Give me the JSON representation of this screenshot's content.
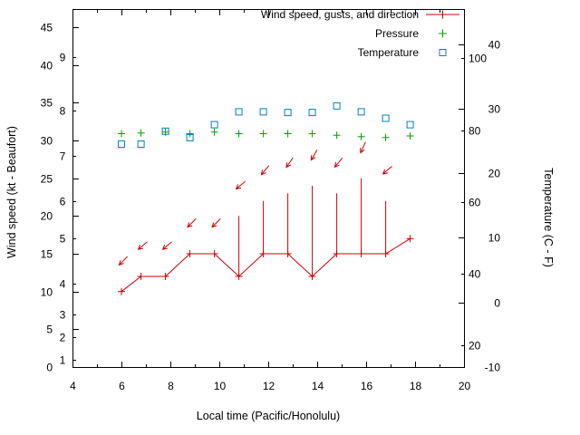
{
  "chart_data": {
    "type": "line",
    "title": "",
    "xlabel": "Local time (Pacific/Honolulu)",
    "ylabel_left": "Wind speed (kt - Beaufort)",
    "ylabel_right": "Temperature (C - F)",
    "grid": false,
    "legend_position": "top-right-inside",
    "xlim": [
      4,
      20
    ],
    "kt_lim": [
      0,
      47.4
    ],
    "c_lim": [
      -10,
      45.4
    ],
    "x_ticks": [
      4,
      6,
      8,
      10,
      12,
      14,
      16,
      18,
      20
    ],
    "x_minor_step": 1,
    "kt_ticks": [
      0,
      5,
      10,
      15,
      20,
      25,
      30,
      35,
      40,
      45
    ],
    "beaufort_ticks": [
      {
        "label": "1",
        "kt": 1
      },
      {
        "label": "2",
        "kt": 4
      },
      {
        "label": "3",
        "kt": 7
      },
      {
        "label": "4",
        "kt": 11
      },
      {
        "label": "5",
        "kt": 17
      },
      {
        "label": "6",
        "kt": 22
      },
      {
        "label": "7",
        "kt": 28
      },
      {
        "label": "8",
        "kt": 34
      },
      {
        "label": "9",
        "kt": 41
      }
    ],
    "c_ticks": [
      -10,
      0,
      10,
      20,
      30,
      40
    ],
    "f_ticks": [
      20,
      40,
      60,
      80,
      100
    ],
    "x": [
      6,
      6.8,
      7.8,
      8.8,
      9.8,
      10.8,
      11.8,
      12.8,
      13.8,
      14.8,
      15.8,
      16.8,
      17.8
    ],
    "series": [
      {
        "name": "Wind speed, gusts, and direction",
        "color": "#cc0000",
        "marker": "plus",
        "wind_kt": [
          10,
          12,
          12,
          15,
          15,
          12,
          15,
          15,
          12,
          15,
          15,
          15,
          17
        ],
        "gust_kt": [
          10,
          12,
          12,
          15,
          15,
          20,
          22,
          23,
          24,
          23,
          25,
          22,
          17
        ],
        "dir_toward_deg": [
          225,
          230,
          230,
          225,
          225,
          230,
          220,
          215,
          210,
          220,
          205,
          230,
          null
        ]
      },
      {
        "name": "Pressure",
        "color": "#00a000",
        "marker": "plus",
        "values_left_axis": [
          30.9,
          31.0,
          31.1,
          30.9,
          31.1,
          30.9,
          30.9,
          30.9,
          30.9,
          30.7,
          30.5,
          30.4,
          30.6
        ]
      },
      {
        "name": "Temperature",
        "color": "#0080c0",
        "marker": "open-square",
        "values_c": [
          24.5,
          24.5,
          26.5,
          25.5,
          27.5,
          29.5,
          29.5,
          29.4,
          29.4,
          30.4,
          29.5,
          28.5,
          27.5
        ]
      }
    ]
  },
  "colors": {
    "axis": "#000000",
    "background": "#ffffff"
  }
}
